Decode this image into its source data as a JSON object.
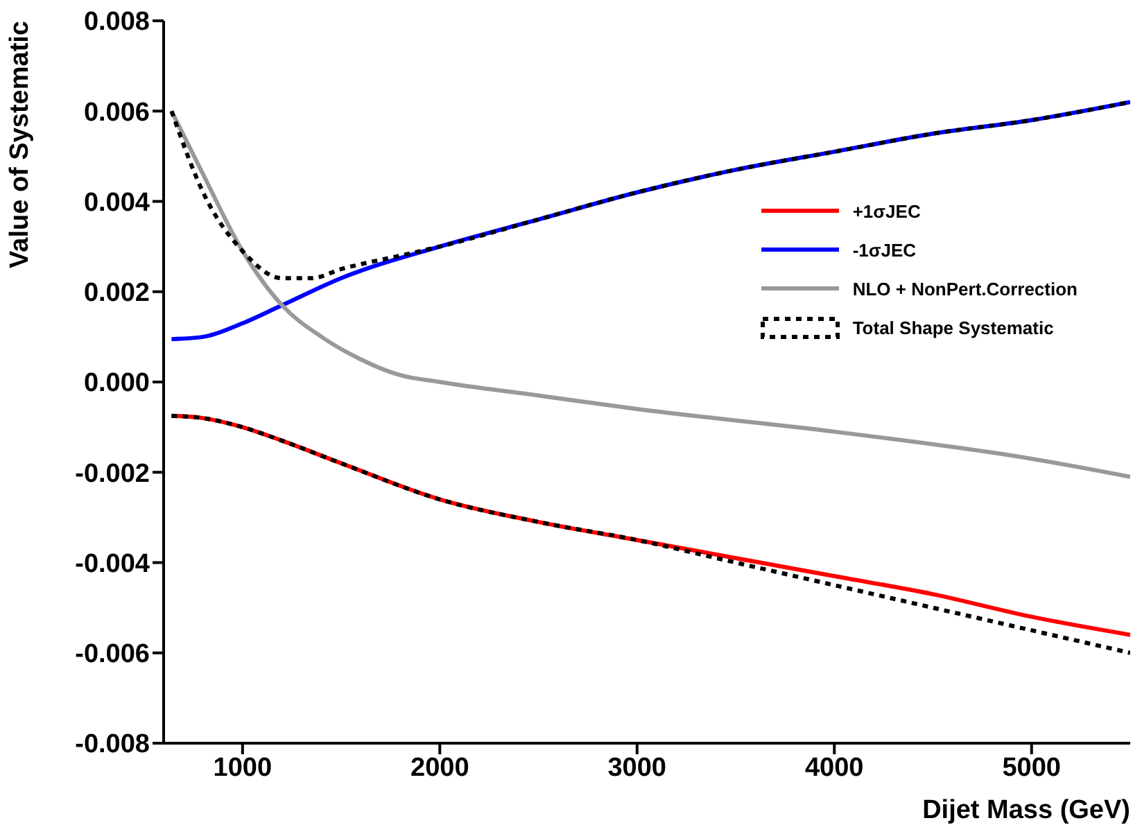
{
  "chart_data": {
    "type": "line",
    "xlabel": "Dijet Mass (GeV)",
    "ylabel": "Value of Systematic",
    "xlim": [
      600,
      5500
    ],
    "xticks": [
      1000,
      2000,
      3000,
      4000,
      5000
    ],
    "ylim": [
      -0.008,
      0.008
    ],
    "yticks": [
      {
        "value": -0.008,
        "label": "-0.008"
      },
      {
        "value": -0.006,
        "label": "-0.006"
      },
      {
        "value": -0.004,
        "label": "-0.004"
      },
      {
        "value": -0.002,
        "label": "-0.002"
      },
      {
        "value": 0,
        "label": "0.000"
      },
      {
        "value": 0.002,
        "label": "0.002"
      },
      {
        "value": 0.004,
        "label": "0.004"
      },
      {
        "value": 0.006,
        "label": "0.006"
      },
      {
        "value": 0.008,
        "label": "0.008"
      }
    ],
    "legend": "right",
    "marker": "none",
    "series": [
      {
        "name": "+1σJEC",
        "color": "#ff0000",
        "x": [
          640,
          800,
          1000,
          1200,
          1500,
          2000,
          2500,
          3000,
          3500,
          4000,
          4500,
          5000,
          5500
        ],
        "values": [
          -0.00075,
          -0.0008,
          -0.001,
          -0.0013,
          -0.0018,
          -0.0026,
          -0.0031,
          -0.0035,
          -0.0039,
          -0.0043,
          -0.0047,
          -0.0052,
          -0.0056
        ]
      },
      {
        "name": "-1σJEC",
        "color": "#0000ff",
        "x": [
          640,
          800,
          1000,
          1200,
          1500,
          2000,
          2500,
          3000,
          3500,
          4000,
          4500,
          5000,
          5500
        ],
        "values": [
          0.00095,
          0.001,
          0.0013,
          0.0017,
          0.0023,
          0.003,
          0.0036,
          0.0042,
          0.0047,
          0.0051,
          0.0055,
          0.0058,
          0.0062
        ]
      },
      {
        "name": "NLO + NonPert.Correction",
        "color": "#999999",
        "x": [
          640,
          800,
          1000,
          1200,
          1400,
          1600,
          1800,
          2000,
          2500,
          3000,
          4000,
          5000,
          5500
        ],
        "values": [
          0.006,
          0.0046,
          0.0029,
          0.0017,
          0.001,
          0.0005,
          0.00015,
          0,
          -0.0003,
          -0.0006,
          -0.0011,
          -0.0017,
          -0.0021
        ]
      },
      {
        "name": "Total Shape Systematic",
        "color": "#000000",
        "line_style": "dotted",
        "x": [
          640,
          800,
          1000,
          1200,
          1350,
          1500,
          1800,
          2000,
          2500,
          3000,
          3500,
          4000,
          4500,
          5000,
          5500
        ],
        "values": [
          0.006,
          0.0042,
          0.0029,
          0.0023,
          0.0023,
          0.0025,
          0.0028,
          0.003,
          0.0036,
          0.0042,
          0.0047,
          0.0051,
          0.0055,
          0.0058,
          0.0062
        ]
      },
      {
        "color": "#000000",
        "line_style": "dotted",
        "x": [
          640,
          800,
          1000,
          1200,
          1500,
          2000,
          2500,
          3000,
          3500,
          4000,
          4500,
          5000,
          5500
        ],
        "values": [
          -0.00075,
          -0.0008,
          -0.001,
          -0.0013,
          -0.0018,
          -0.0026,
          -0.0031,
          -0.0035,
          -0.004,
          -0.0045,
          -0.005,
          -0.0055,
          -0.006
        ]
      }
    ]
  }
}
